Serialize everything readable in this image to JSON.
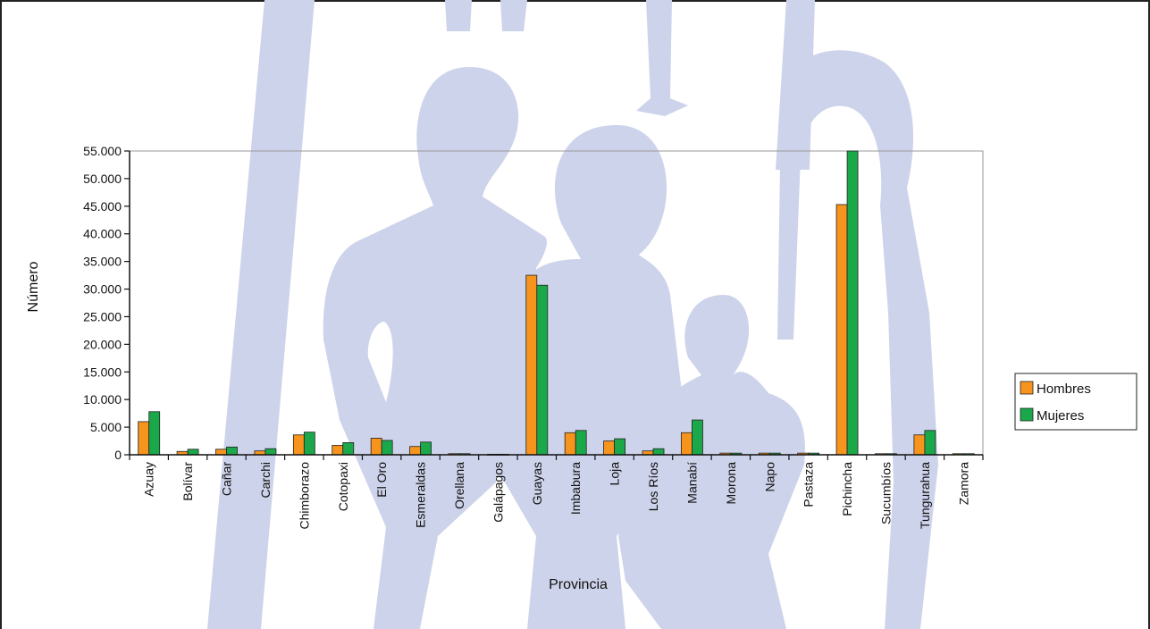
{
  "chart_data": {
    "type": "bar",
    "title": "",
    "xlabel": "Provincia",
    "ylabel": "Número",
    "ylim": [
      0,
      55000
    ],
    "yticks": [
      0,
      5000,
      10000,
      15000,
      20000,
      25000,
      30000,
      35000,
      40000,
      45000,
      50000,
      55000
    ],
    "ytick_labels": [
      "0",
      "5.000",
      "10.000",
      "15.000",
      "20.000",
      "25.000",
      "30.000",
      "35.000",
      "40.000",
      "45.000",
      "50.000",
      "55.000"
    ],
    "categories": [
      "Azuay",
      "Bolívar",
      "Cañar",
      "Carchi",
      "Chimborazo",
      "Cotopaxi",
      "El Oro",
      "Esmeraldas",
      "Orellana",
      "Galápagos",
      "Guayas",
      "Imbabura",
      "Loja",
      "Los Ríos",
      "Manabí",
      "Morona",
      "Napo",
      "Pastaza",
      "Pichincha",
      "Sucumbíos",
      "Tungurahua",
      "Zamora"
    ],
    "series": [
      {
        "name": "Hombres",
        "color": "#f7941d",
        "values": [
          6000,
          600,
          1000,
          700,
          3600,
          1700,
          3000,
          1500,
          200,
          100,
          32500,
          4000,
          2500,
          700,
          4000,
          300,
          300,
          300,
          45300,
          200,
          3600,
          200
        ]
      },
      {
        "name": "Mujeres",
        "color": "#1aa84a",
        "values": [
          7800,
          1000,
          1400,
          1100,
          4100,
          2200,
          2600,
          2300,
          200,
          100,
          30700,
          4400,
          2900,
          1100,
          6300,
          300,
          300,
          300,
          55000,
          200,
          4400,
          200
        ]
      }
    ],
    "legend_position": "right",
    "grid": false
  }
}
